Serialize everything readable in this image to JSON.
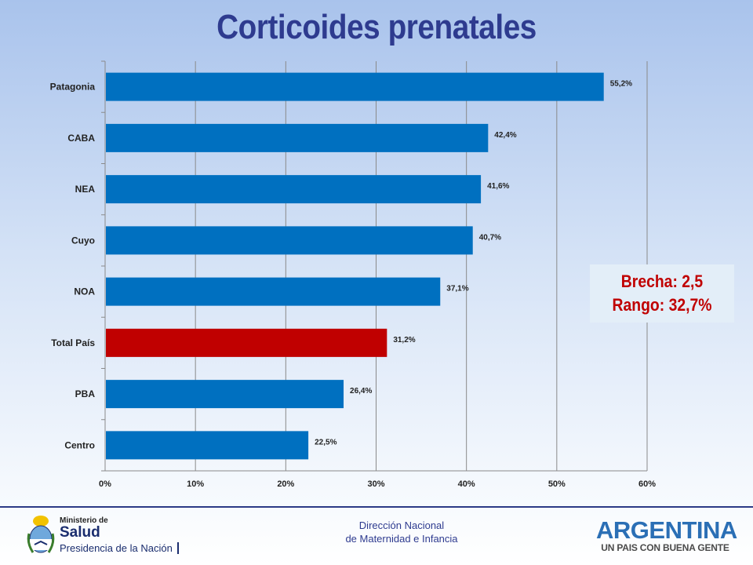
{
  "title": "Corticoides prenatales",
  "callout": {
    "line1": "Brecha: 2,5",
    "line2": "Rango: 32,7%"
  },
  "footer": {
    "line1": "Dirección Nacional",
    "line2": "de Maternidad e Infancia",
    "ministry": {
      "line1": "Ministerio de",
      "line2": "Salud",
      "line3": "Presidencia de la Nación"
    },
    "brand": {
      "line1": "ARGENTINA",
      "line2": "UN PAIS CON BUENA GENTE"
    }
  },
  "colors": {
    "bar": "#0070c0",
    "highlight": "#c00000",
    "title": "#2e3b8f",
    "callout_text": "#c00000"
  },
  "chart_data": {
    "type": "bar",
    "orientation": "horizontal",
    "categories": [
      "Patagonia",
      "CABA",
      "NEA",
      "Cuyo",
      "NOA",
      "Total País",
      "PBA",
      "Centro"
    ],
    "values": [
      55.2,
      42.4,
      41.6,
      40.7,
      37.1,
      31.2,
      26.4,
      22.5
    ],
    "value_labels": [
      "55,2%",
      "42,4%",
      "41,6%",
      "40,7%",
      "37,1%",
      "31,2%",
      "26,4%",
      "22,5%"
    ],
    "highlight_category": "Total País",
    "xlim": [
      0,
      60
    ],
    "xticks": [
      0,
      10,
      20,
      30,
      40,
      50,
      60
    ],
    "xtick_labels": [
      "0%",
      "10%",
      "20%",
      "30%",
      "40%",
      "50%",
      "60%"
    ],
    "grid": true,
    "legend": false
  }
}
